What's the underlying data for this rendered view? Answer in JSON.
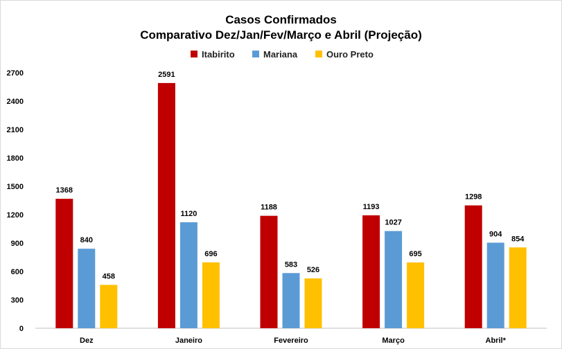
{
  "chart_data": {
    "type": "bar",
    "title": "Casos Confirmados",
    "subtitle": "Comparativo Dez/Jan/Fev/Março e Abril (Projeção)",
    "categories": [
      "Dez",
      "Janeiro",
      "Fevereiro",
      "Março",
      "Abril*"
    ],
    "series": [
      {
        "name": "Itabirito",
        "color": "#c00000",
        "values": [
          1368,
          2591,
          1188,
          1193,
          1298
        ]
      },
      {
        "name": "Mariana",
        "color": "#5b9bd5",
        "values": [
          840,
          1120,
          583,
          1027,
          904
        ]
      },
      {
        "name": "Ouro Preto",
        "color": "#ffc000",
        "values": [
          458,
          696,
          526,
          695,
          854
        ]
      }
    ],
    "ylim": [
      0,
      2700
    ],
    "yticks": [
      0,
      300,
      600,
      900,
      1200,
      1500,
      1800,
      2100,
      2400,
      2700
    ],
    "grid": false,
    "legend_position": "top"
  }
}
